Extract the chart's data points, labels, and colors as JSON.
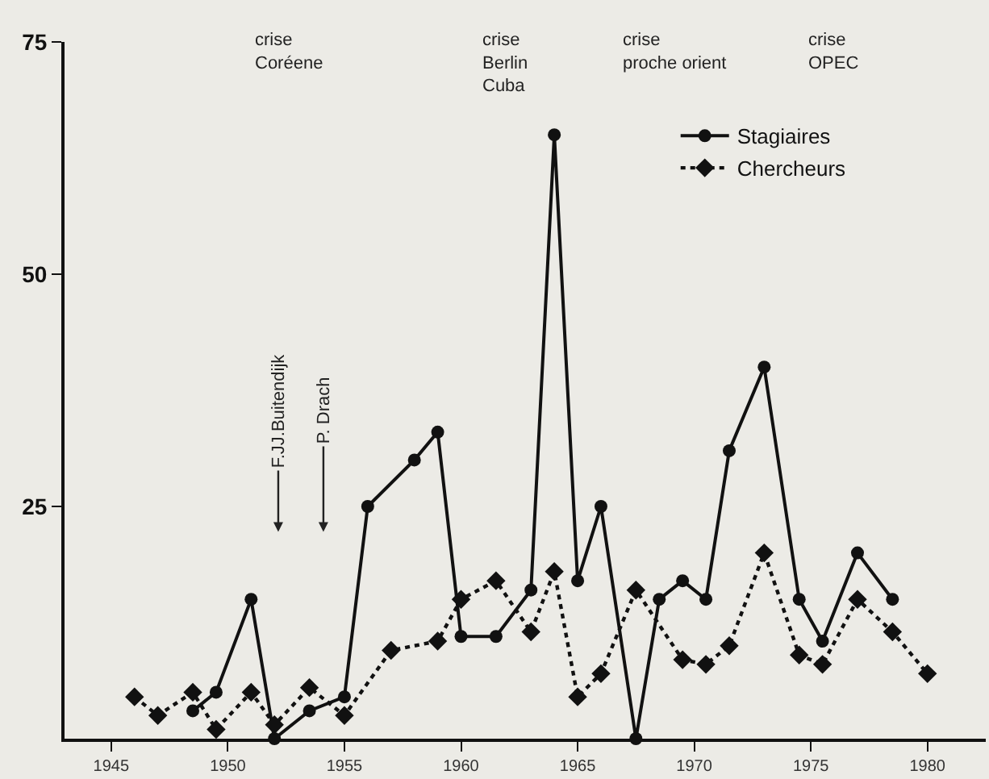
{
  "chart_data": {
    "type": "line",
    "xlim": [
      1943,
      1982.5
    ],
    "xticks": [
      1945,
      1950,
      1955,
      1960,
      1965,
      1970,
      1975,
      1980
    ],
    "ylim": [
      0,
      75
    ],
    "yticks": [
      25,
      50,
      75
    ],
    "grid": false,
    "legend": "top right",
    "series": [
      {
        "name": "Stagiaires",
        "color": "#111111",
        "marker": "circle",
        "line_style": "solid",
        "x": [
          1948.5,
          1949.5,
          1951,
          1952,
          1953.5,
          1955,
          1956,
          1958,
          1959,
          1960,
          1961.5,
          1963,
          1964,
          1965,
          1966,
          1967.5,
          1968.5,
          1969.5,
          1970.5,
          1971.5,
          1973,
          1974.5,
          1975.5,
          1977,
          1978.5
        ],
        "values": [
          3,
          5,
          15,
          0,
          3,
          4.5,
          25,
          30,
          33,
          11,
          11,
          16,
          65,
          17,
          25,
          0,
          15,
          17,
          15,
          31,
          40,
          15,
          10.5,
          20,
          15
        ]
      },
      {
        "name": "Chercheurs",
        "color": "#111111",
        "marker": "diamond",
        "line_style": "dotted",
        "x": [
          1946,
          1947,
          1948.5,
          1949.5,
          1951,
          1952,
          1953.5,
          1955,
          1957,
          1959,
          1960,
          1961.5,
          1963,
          1964,
          1965,
          1966,
          1967.5,
          1969.5,
          1970.5,
          1971.5,
          1973,
          1974.5,
          1975.5,
          1977,
          1978.5,
          1980
        ],
        "values": [
          4.5,
          2.5,
          5,
          1,
          5,
          1.5,
          5.5,
          2.5,
          9.5,
          10.5,
          15,
          17,
          11.5,
          18,
          4.5,
          7,
          16,
          8.5,
          8,
          10,
          20,
          9,
          8,
          15,
          11.5,
          7
        ]
      }
    ],
    "annotations": [
      "crise\nCoréene",
      "crise\nBerlin\nCuba",
      "crise\nproche orient",
      "crise\nOPEC",
      "F.JJ.Buitendijk",
      "P. Drach"
    ]
  }
}
